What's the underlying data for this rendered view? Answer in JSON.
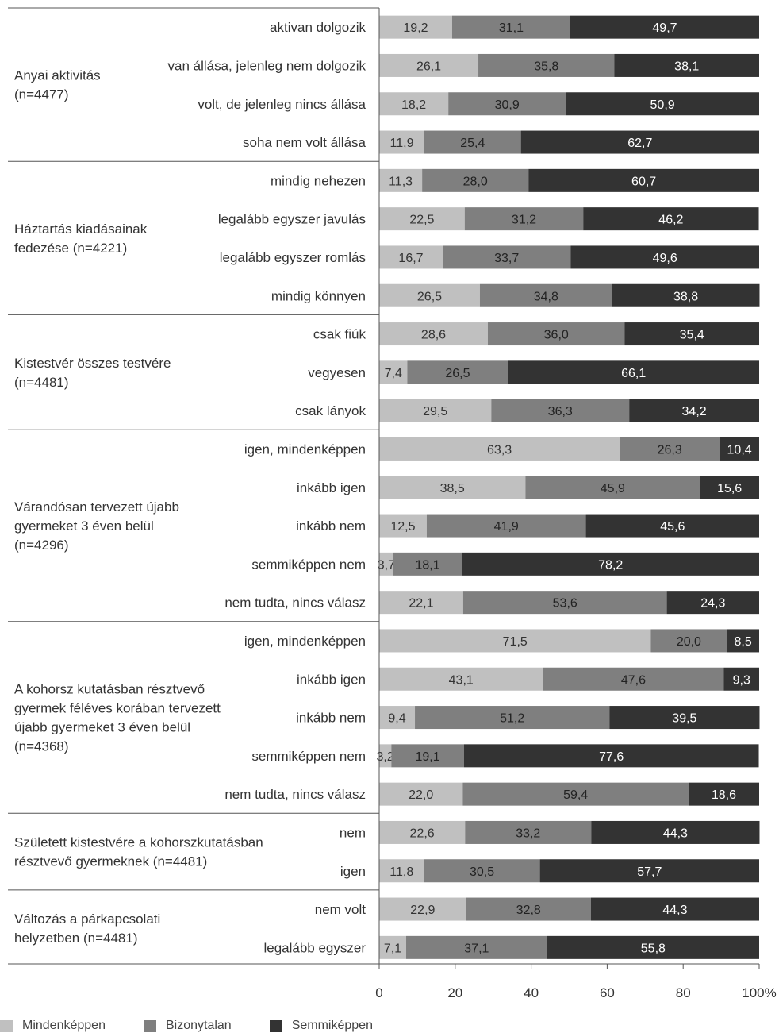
{
  "chart_data": {
    "type": "bar",
    "stacked": true,
    "orientation": "horizontal",
    "xlim": [
      0,
      100
    ],
    "x_ticks": [
      "0",
      "20",
      "40",
      "60",
      "80",
      "100%"
    ],
    "colors": [
      "#c0c0c0",
      "#7f7f7f",
      "#333333"
    ],
    "legend": [
      "Mindenképpen",
      "Bizonytalan",
      "Semmiképpen"
    ],
    "groups": [
      {
        "label": [
          "Anyai aktivitás",
          "(n=4477)"
        ],
        "rows": [
          {
            "category": "aktivan dolgozik",
            "values": [
              19.2,
              31.1,
              49.7
            ],
            "labels": [
              "19,2",
              "31,1",
              "49,7"
            ]
          },
          {
            "category": "van állása, jelenleg nem dolgozik",
            "values": [
              26.1,
              35.8,
              38.1
            ],
            "labels": [
              "26,1",
              "35,8",
              "38,1"
            ]
          },
          {
            "category": "volt, de jelenleg nincs állása",
            "values": [
              18.2,
              30.9,
              50.9
            ],
            "labels": [
              "18,2",
              "30,9",
              "50,9"
            ]
          },
          {
            "category": "soha nem volt állása",
            "values": [
              11.9,
              25.4,
              62.7
            ],
            "labels": [
              "11,9",
              "25,4",
              "62,7"
            ]
          }
        ]
      },
      {
        "label": [
          "Háztartás kiadásainak",
          "fedezése (n=4221)"
        ],
        "rows": [
          {
            "category": "mindig nehezen",
            "values": [
              11.3,
              28.0,
              60.7
            ],
            "labels": [
              "11,3",
              "28,0",
              "60,7"
            ]
          },
          {
            "category": "legalább egyszer javulás",
            "values": [
              22.5,
              31.2,
              46.2
            ],
            "labels": [
              "22,5",
              "31,2",
              "46,2"
            ]
          },
          {
            "category": "legalább egyszer romlás",
            "values": [
              16.7,
              33.7,
              49.6
            ],
            "labels": [
              "16,7",
              "33,7",
              "49,6"
            ]
          },
          {
            "category": "mindig könnyen",
            "values": [
              26.5,
              34.8,
              38.8
            ],
            "labels": [
              "26,5",
              "34,8",
              "38,8"
            ]
          }
        ]
      },
      {
        "label": [
          "Kistestvér összes testvére",
          "(n=4481)"
        ],
        "rows": [
          {
            "category": "csak fiúk",
            "values": [
              28.6,
              36.0,
              35.4
            ],
            "labels": [
              "28,6",
              "36,0",
              "35,4"
            ]
          },
          {
            "category": "vegyesen",
            "values": [
              7.4,
              26.5,
              66.1
            ],
            "labels": [
              "7,4",
              "26,5",
              "66,1"
            ]
          },
          {
            "category": "csak lányok",
            "values": [
              29.5,
              36.3,
              34.2
            ],
            "labels": [
              "29,5",
              "36,3",
              "34,2"
            ]
          }
        ]
      },
      {
        "label": [
          "Várandósan tervezett újabb",
          "gyermeket 3 éven belül",
          "(n=4296)"
        ],
        "rows": [
          {
            "category": "igen, mindenképpen",
            "values": [
              63.3,
              26.3,
              10.4
            ],
            "labels": [
              "63,3",
              "26,3",
              "10,4"
            ]
          },
          {
            "category": "inkább igen",
            "values": [
              38.5,
              45.9,
              15.6
            ],
            "labels": [
              "38,5",
              "45,9",
              "15,6"
            ]
          },
          {
            "category": "inkább nem",
            "values": [
              12.5,
              41.9,
              45.6
            ],
            "labels": [
              "12,5",
              "41,9",
              "45,6"
            ]
          },
          {
            "category": "semmiképpen nem",
            "values": [
              3.7,
              18.1,
              78.2
            ],
            "labels": [
              "3,7",
              "18,1",
              "78,2"
            ]
          },
          {
            "category": "nem tudta, nincs válasz",
            "values": [
              22.1,
              53.6,
              24.3
            ],
            "labels": [
              "22,1",
              "53,6",
              "24,3"
            ]
          }
        ]
      },
      {
        "label": [
          "A kohorsz kutatásban résztvevő",
          "gyermek féléves korában tervezett",
          "újabb gyermeket 3 éven belül",
          "(n=4368)"
        ],
        "rows": [
          {
            "category": "igen, mindenképpen",
            "values": [
              71.5,
              20.0,
              8.5
            ],
            "labels": [
              "71,5",
              "20,0",
              "8,5"
            ]
          },
          {
            "category": "inkább igen",
            "values": [
              43.1,
              47.6,
              9.3
            ],
            "labels": [
              "43,1",
              "47,6",
              "9,3"
            ]
          },
          {
            "category": "inkább nem",
            "values": [
              9.4,
              51.2,
              39.5
            ],
            "labels": [
              "9,4",
              "51,2",
              "39,5"
            ]
          },
          {
            "category": "semmiképpen nem",
            "values": [
              3.2,
              19.1,
              77.6
            ],
            "labels": [
              "3,2",
              "19,1",
              "77,6"
            ]
          },
          {
            "category": "nem tudta, nincs válasz",
            "values": [
              22.0,
              59.4,
              18.6
            ],
            "labels": [
              "22,0",
              "59,4",
              "18,6"
            ]
          }
        ]
      },
      {
        "label": [
          "Született kistestvére a kohorszkutatásban",
          "résztvevő gyermeknek (n=4481)"
        ],
        "rows": [
          {
            "category": "nem",
            "values": [
              22.6,
              33.2,
              44.3
            ],
            "labels": [
              "22,6",
              "33,2",
              "44,3"
            ]
          },
          {
            "category": "igen",
            "values": [
              11.8,
              30.5,
              57.7
            ],
            "labels": [
              "11,8",
              "30,5",
              "57,7"
            ]
          }
        ]
      },
      {
        "label": [
          "Változás a párkapcsolati",
          "helyzetben (n=4481)"
        ],
        "rows": [
          {
            "category": "nem volt",
            "values": [
              22.9,
              32.8,
              44.3
            ],
            "labels": [
              "22,9",
              "32,8",
              "44,3"
            ]
          },
          {
            "category": "legalább egyszer",
            "values": [
              7.1,
              37.1,
              55.8
            ],
            "labels": [
              "7,1",
              "37,1",
              "55,8"
            ]
          }
        ]
      }
    ]
  }
}
